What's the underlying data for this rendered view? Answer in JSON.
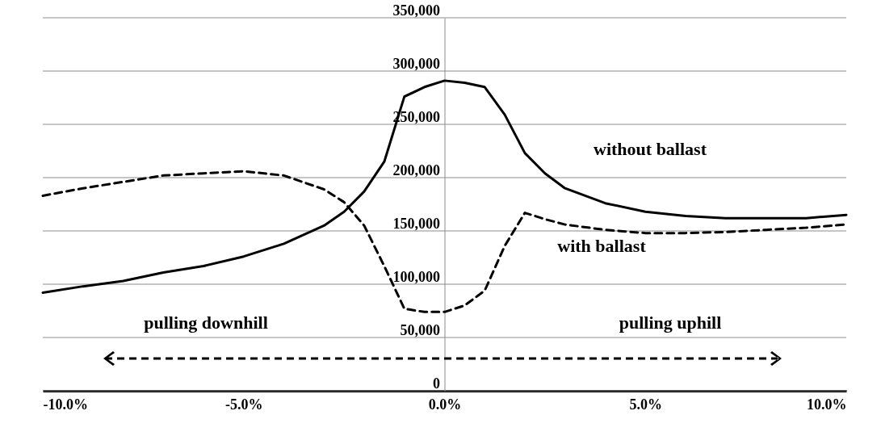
{
  "chart_data": {
    "type": "line",
    "x": [
      -10,
      -9,
      -8,
      -7,
      -6,
      -5,
      -4,
      -3,
      -2.5,
      -2,
      -1.5,
      -1,
      -0.5,
      0,
      0.5,
      1,
      1.5,
      2,
      2.5,
      3,
      4,
      5,
      6,
      7,
      8,
      9,
      10
    ],
    "series": [
      {
        "name": "without ballast",
        "color": "#000000",
        "line_style": "solid",
        "values": [
          92000,
          98000,
          103000,
          111000,
          117000,
          126000,
          138000,
          155000,
          168000,
          187000,
          215000,
          276000,
          285000,
          291000,
          289000,
          285000,
          259000,
          223000,
          204000,
          190000,
          176000,
          168000,
          164000,
          162000,
          162000,
          162000,
          165000
        ]
      },
      {
        "name": "with ballast",
        "color": "#000000",
        "line_style": "dashed",
        "values": [
          183000,
          190000,
          196000,
          202000,
          204000,
          206000,
          202000,
          189000,
          177000,
          155000,
          117000,
          77000,
          74000,
          74000,
          80000,
          94000,
          136000,
          167000,
          161000,
          156000,
          151000,
          148000,
          148000,
          149000,
          151000,
          153000,
          156000
        ]
      }
    ],
    "xlim": [
      -10,
      10
    ],
    "xticks": [
      {
        "value": -10,
        "label": "-10.0%"
      },
      {
        "value": -5,
        "label": "-5.0%"
      },
      {
        "value": 0,
        "label": "0.0%"
      },
      {
        "value": 5,
        "label": "5.0%"
      },
      {
        "value": 10,
        "label": "10.0%"
      }
    ],
    "ylim": [
      0,
      350000
    ],
    "yticks": [
      {
        "value": 0,
        "label": "0"
      },
      {
        "value": 50000,
        "label": "50,000"
      },
      {
        "value": 100000,
        "label": "100,000"
      },
      {
        "value": 150000,
        "label": "150,000"
      },
      {
        "value": 200000,
        "label": "200,000"
      },
      {
        "value": 250000,
        "label": "250,000"
      },
      {
        "value": 300000,
        "label": "300,000"
      },
      {
        "value": 350000,
        "label": "350,000"
      }
    ],
    "grid": "y",
    "legend": false,
    "annotations": [
      "pulling downhill",
      "pulling uphill"
    ]
  }
}
